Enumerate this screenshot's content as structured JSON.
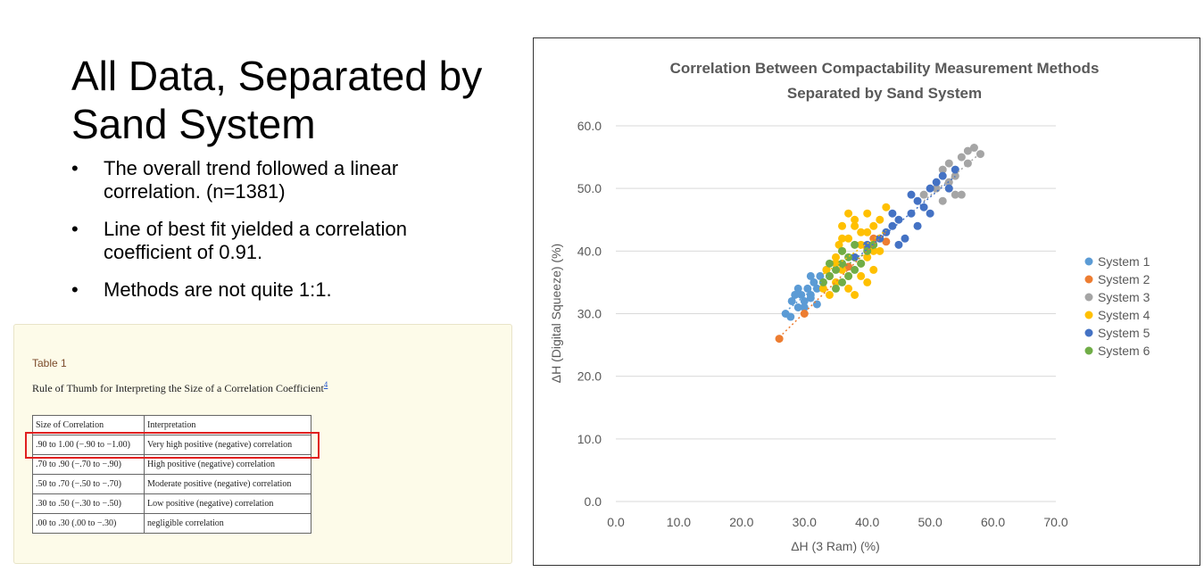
{
  "slide": {
    "title": "All Data, Separated by Sand System",
    "bullets": [
      "The overall trend followed a linear correlation. (n=1381)",
      "Line of best fit yielded a correlation coefficient of 0.91.",
      "Methods are not quite 1:1."
    ]
  },
  "table": {
    "label": "Table 1",
    "caption": "Rule of Thumb for Interpreting the Size of a Correlation Coefficient",
    "footnote": "4",
    "header": [
      "Size of Correlation",
      "Interpretation"
    ],
    "rows": [
      [
        ".90 to 1.00 (−.90 to −1.00)",
        "Very high positive (negative) correlation"
      ],
      [
        ".70 to .90 (−.70 to −.90)",
        "High positive (negative) correlation"
      ],
      [
        ".50 to .70 (−.50 to −.70)",
        "Moderate positive (negative) correlation"
      ],
      [
        ".30 to .50 (−.30 to −.50)",
        "Low positive (negative) correlation"
      ],
      [
        ".00 to .30 (.00 to −.30)",
        "negligible correlation"
      ]
    ]
  },
  "chart_data": {
    "type": "scatter",
    "title": [
      "Correlation Between Compactability Measurement Methods",
      "Separated by Sand System"
    ],
    "x_label": "ΔH (3 Ram) (%)",
    "y_label": "ΔH (Digital Squeeze) (%)",
    "xlim": [
      0,
      70
    ],
    "ylim": [
      0,
      60
    ],
    "xticks": [
      {
        "value": 0,
        "label": "0.0"
      },
      {
        "value": 10,
        "label": "10.0"
      },
      {
        "value": 20,
        "label": "20.0"
      },
      {
        "value": 30,
        "label": "30.0"
      },
      {
        "value": 40,
        "label": "40.0"
      },
      {
        "value": 50,
        "label": "50.0"
      },
      {
        "value": 60,
        "label": "60.0"
      },
      {
        "value": 70,
        "label": "70.0"
      }
    ],
    "yticks": [
      {
        "value": 0,
        "label": "0.0"
      },
      {
        "value": 10,
        "label": "10.0"
      },
      {
        "value": 20,
        "label": "20.0"
      },
      {
        "value": 30,
        "label": "30.0"
      },
      {
        "value": 40,
        "label": "40.0"
      },
      {
        "value": 50,
        "label": "50.0"
      },
      {
        "value": 60,
        "label": "60.0"
      }
    ],
    "grid": true,
    "legend": "right",
    "trendline": true,
    "series": [
      {
        "name": "System 1",
        "color": "#5b9bd5",
        "x": [
          27,
          27.8,
          28,
          29,
          29.5,
          30,
          30.5,
          31,
          31.5,
          32,
          32.5,
          33,
          33.5,
          30,
          31,
          28.5,
          29,
          32,
          34,
          31
        ],
        "values": [
          30,
          29.5,
          32,
          31,
          33,
          32,
          34,
          33,
          35,
          34,
          36,
          35,
          37,
          31,
          32.5,
          33,
          34,
          31.5,
          36,
          36
        ]
      },
      {
        "name": "System 2",
        "color": "#ed7d31",
        "x": [
          26,
          30,
          37,
          40,
          43,
          41
        ],
        "values": [
          26,
          30,
          37.5,
          40.5,
          41.5,
          42
        ]
      },
      {
        "name": "System 3",
        "color": "#a5a5a5",
        "x": [
          49,
          51,
          52,
          53,
          54,
          55,
          56,
          57,
          58,
          53,
          54,
          52,
          53,
          55,
          56
        ],
        "values": [
          49,
          50,
          53,
          54,
          52,
          55,
          56,
          56.5,
          55.5,
          50,
          49,
          48,
          51,
          49,
          54
        ]
      },
      {
        "name": "System 4",
        "color": "#ffc000",
        "x": [
          33,
          34,
          35,
          35,
          36,
          36,
          37,
          37,
          38,
          38,
          39,
          39,
          40,
          40,
          41,
          41,
          42,
          42,
          43,
          34,
          35,
          36,
          37,
          38,
          39,
          40,
          41,
          36,
          38,
          40,
          42,
          37,
          39,
          33.5,
          35.5
        ],
        "values": [
          34,
          36,
          35,
          38,
          37,
          40,
          36,
          42,
          39,
          44,
          38,
          41,
          43,
          46,
          40,
          44,
          42,
          45,
          47,
          33,
          39,
          42,
          34,
          45,
          36,
          39,
          37,
          44,
          33,
          35,
          40,
          46,
          43,
          37,
          41
        ]
      },
      {
        "name": "System 5",
        "color": "#4472c4",
        "x": [
          38,
          40,
          42,
          43,
          44,
          45,
          45,
          46,
          47,
          48,
          48,
          49,
          50,
          50,
          51,
          52,
          53,
          54,
          47,
          44
        ],
        "values": [
          39,
          41,
          42,
          43,
          44,
          41,
          45,
          42,
          46,
          48,
          44,
          47,
          46,
          50,
          51,
          52,
          50,
          53,
          49,
          46
        ]
      },
      {
        "name": "System 6",
        "color": "#70ad47",
        "x": [
          33,
          34,
          35,
          35,
          36,
          36,
          37,
          37,
          38,
          38,
          39,
          40,
          41,
          34,
          36
        ],
        "values": [
          35,
          36,
          37,
          34,
          38,
          40,
          36,
          39,
          37,
          41,
          38,
          40,
          41,
          38,
          35
        ]
      }
    ]
  }
}
